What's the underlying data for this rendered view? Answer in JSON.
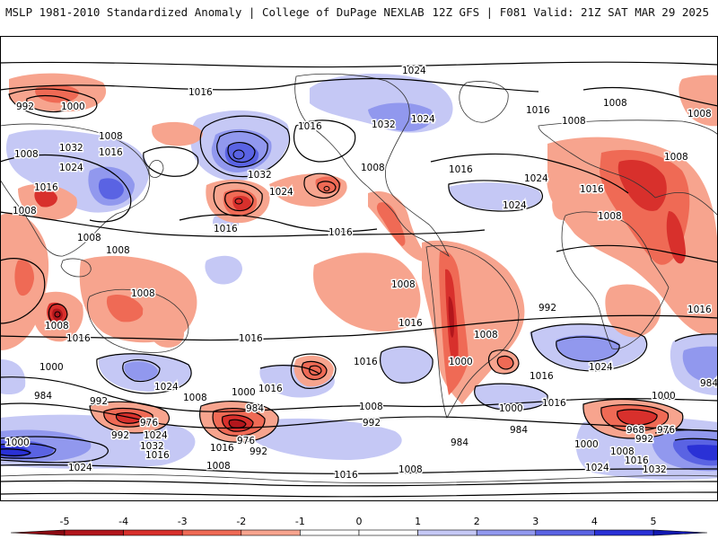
{
  "header": {
    "left": "MSLP 1981-2010 Standardized Anomaly | College of DuPage NEXLAB",
    "right": "12Z GFS | F081 Valid: 21Z SAT MAR 29 2025"
  },
  "colors": {
    "land": "#ffffff",
    "coast": "#333333",
    "isobar": "#000000"
  },
  "colorbar": {
    "tick_labels": [
      "-5",
      "-4",
      "-3",
      "-2",
      "-1",
      "0",
      "1",
      "2",
      "3",
      "4",
      "5"
    ],
    "bins": [
      {
        "from": -5,
        "to": -4,
        "color": "#b2161c"
      },
      {
        "from": -4,
        "to": -3,
        "color": "#d8302c"
      },
      {
        "from": -3,
        "to": -2,
        "color": "#ef6a55"
      },
      {
        "from": -2,
        "to": -1,
        "color": "#f7a48e"
      },
      {
        "from": -1,
        "to": 0,
        "color": "#ffffff"
      },
      {
        "from": 0,
        "to": 1,
        "color": "#ffffff"
      },
      {
        "from": 1,
        "to": 2,
        "color": "#c5c8f5"
      },
      {
        "from": 2,
        "to": 3,
        "color": "#9198ee"
      },
      {
        "from": 3,
        "to": 4,
        "color": "#5a63e3"
      },
      {
        "from": 4,
        "to": 5,
        "color": "#2a31d6"
      }
    ],
    "low_end_color": "#8b0a12",
    "high_end_color": "#1118b0"
  },
  "isobar_labels": [
    "992",
    "1000",
    "1016",
    "1024",
    "1032",
    "1008",
    "1016",
    "1008",
    "1024",
    "1016",
    "1032",
    "1024",
    "1016",
    "1024",
    "1032",
    "1008",
    "1016",
    "1024",
    "1016",
    "1008",
    "1008",
    "1016",
    "1008",
    "1024",
    "1008",
    "1016",
    "1008",
    "1008",
    "1008",
    "1016",
    "1016",
    "1008",
    "1016",
    "1000",
    "1024",
    "1016",
    "1024",
    "1016",
    "1000",
    "984",
    "992",
    "1008",
    "1016",
    "992",
    "1000",
    "1000",
    "1008",
    "984",
    "1016",
    "976",
    "1024",
    "992",
    "1032",
    "984",
    "976",
    "1000",
    "1016",
    "1008",
    "992",
    "1016",
    "984",
    "968",
    "976",
    "992",
    "1000",
    "1008",
    "1024",
    "1016",
    "1032",
    "1000",
    "1024",
    "1008",
    "1016",
    "1008",
    "1016",
    "1008",
    "1008",
    "1016",
    "1008",
    "992",
    "984",
    "1000"
  ]
}
